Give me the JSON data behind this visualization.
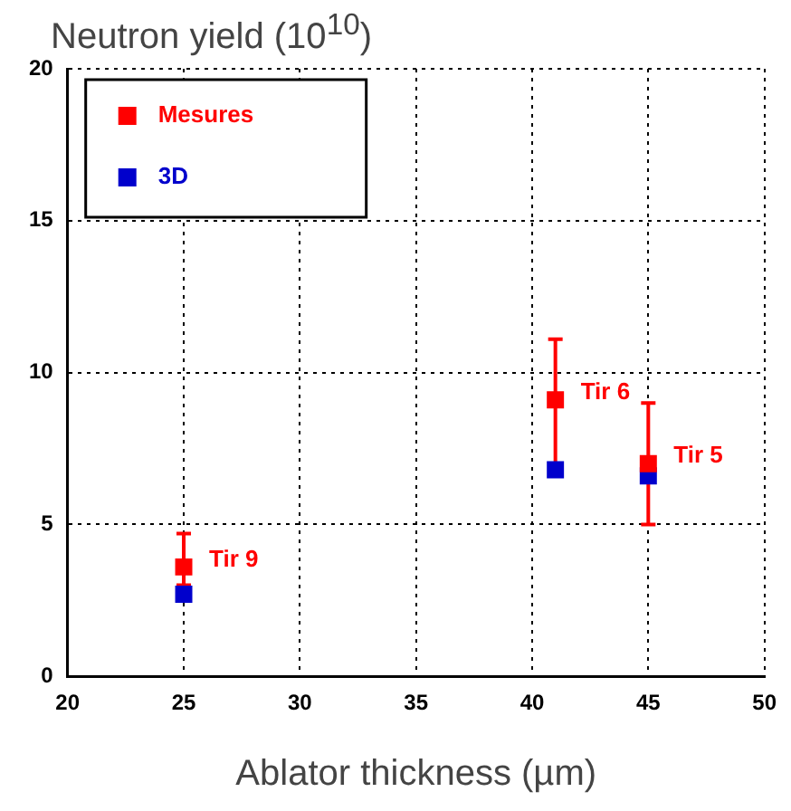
{
  "chart_data": {
    "type": "scatter",
    "ylabel": "Neutron yield (10$^{10}$)",
    "xlabel": "Ablator thickness (µm)",
    "x": [
      25,
      41,
      45
    ],
    "series": [
      {
        "name": "Mesures",
        "color": "#ff0000",
        "values": [
          3.6,
          9.1,
          7.0
        ],
        "errors": [
          [
            3.0,
            4.7
          ],
          [
            7.0,
            11.1
          ],
          [
            5.0,
            9.0
          ]
        ]
      },
      {
        "name": "3D",
        "color": "#0000cc",
        "values": [
          2.7,
          6.8,
          6.6
        ]
      }
    ],
    "xlim": [
      20,
      50
    ],
    "xticks": [
      20,
      25,
      30,
      35,
      40,
      45,
      50
    ],
    "ylim": [
      0,
      20
    ],
    "yticks": [
      0,
      5,
      10,
      15,
      20
    ],
    "annotations": [
      {
        "text": "Tir 9",
        "x": 25,
        "y": 3.6
      },
      {
        "text": "Tir 6",
        "x": 41,
        "y": 9.1
      },
      {
        "text": "Tir 5",
        "x": 45,
        "y": 7.0
      }
    ],
    "grid": true,
    "legend": "top left",
    "marker": "square"
  }
}
